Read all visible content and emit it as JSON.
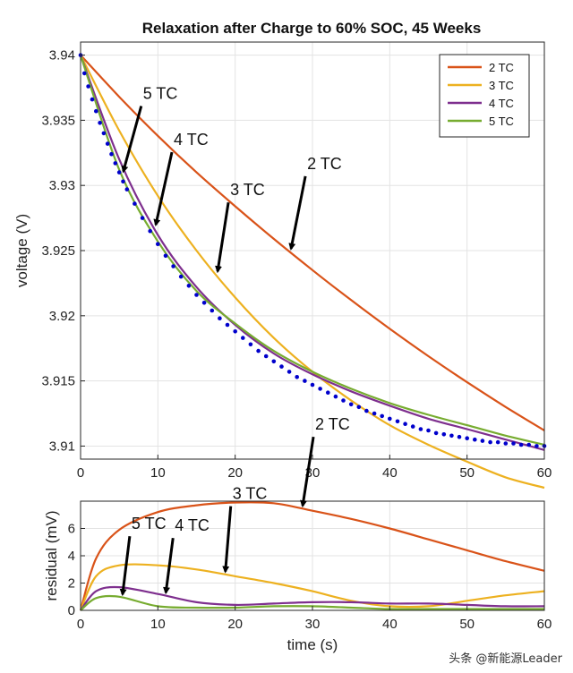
{
  "chart_data": [
    {
      "type": "line",
      "title": "Relaxation after Charge to 60% SOC, 45 Weeks",
      "xlabel": "",
      "ylabel": "voltage (V)",
      "xlim": [
        0,
        60
      ],
      "ylim": [
        3.909,
        3.941
      ],
      "grid": true,
      "legend_position": "top-right",
      "x_ticks": [
        0,
        10,
        20,
        30,
        40,
        50,
        60
      ],
      "x_tick_labels": [
        "0",
        "10",
        "20",
        "30",
        "40",
        "50",
        "60"
      ],
      "y_ticks": [
        3.91,
        3.915,
        3.92,
        3.925,
        3.93,
        3.935,
        3.94
      ],
      "y_tick_labels": [
        "3.91",
        "3.915",
        "3.92",
        "3.925",
        "3.93",
        "3.935",
        "3.94"
      ],
      "x": [
        0,
        5,
        10,
        15,
        20,
        25,
        30,
        35,
        40,
        45,
        50,
        55,
        60
      ],
      "series": [
        {
          "name": "2 TC",
          "color": "#D95319",
          "values": [
            3.94,
            3.9368,
            3.9338,
            3.931,
            3.9284,
            3.9259,
            3.9235,
            3.9212,
            3.919,
            3.9169,
            3.9149,
            3.913,
            3.9112
          ]
        },
        {
          "name": "3 TC",
          "color": "#EDB120",
          "values": [
            3.94,
            3.9342,
            3.9292,
            3.925,
            3.9214,
            3.9183,
            3.9157,
            3.9135,
            3.9116,
            3.9101,
            3.9088,
            3.9076,
            3.9068
          ]
        },
        {
          "name": "4 TC",
          "color": "#7E2F8E",
          "values": [
            3.94,
            3.932,
            3.9262,
            3.9222,
            3.9193,
            3.9171,
            3.9155,
            3.9142,
            3.9131,
            3.9121,
            3.9113,
            3.9105,
            3.9097
          ]
        },
        {
          "name": "5 TC",
          "color": "#77AC30",
          "values": [
            3.94,
            3.9312,
            3.9257,
            3.9219,
            3.9194,
            3.9173,
            3.9157,
            3.9144,
            3.9133,
            3.9124,
            3.9116,
            3.9108,
            3.9101
          ]
        }
      ],
      "measured": {
        "name": "measured",
        "color": "#0000CC",
        "x": [
          0,
          0.5,
          1,
          1.5,
          2,
          2.5,
          3,
          3.5,
          4,
          4.5,
          5,
          5.5,
          6,
          7,
          8,
          9,
          10,
          11,
          12,
          13,
          14,
          15,
          16,
          17,
          18,
          19,
          20,
          21,
          22,
          23,
          24,
          25,
          26,
          27,
          28,
          29,
          30,
          31,
          32,
          33,
          34,
          35,
          36,
          37,
          38,
          39,
          40,
          41,
          42,
          43,
          44,
          45,
          46,
          47,
          48,
          49,
          50,
          51,
          52,
          53,
          54,
          55,
          56,
          57,
          58,
          59,
          60
        ],
        "values": [
          3.94,
          3.9386,
          3.9376,
          3.9366,
          3.9357,
          3.9348,
          3.934,
          3.9332,
          3.9324,
          3.9317,
          3.931,
          3.9303,
          3.9297,
          3.9286,
          3.9275,
          3.9265,
          3.9255,
          3.9246,
          3.9238,
          3.923,
          3.9223,
          3.9216,
          3.921,
          3.9204,
          3.9198,
          3.9193,
          3.9188,
          3.9183,
          3.9178,
          3.9173,
          3.9169,
          3.9165,
          3.9161,
          3.9157,
          3.9153,
          3.915,
          3.9147,
          3.9144,
          3.9141,
          3.9138,
          3.9135,
          3.9132,
          3.913,
          3.9127,
          3.9125,
          3.9123,
          3.9121,
          3.9119,
          3.9117,
          3.9115,
          3.9113,
          3.9112,
          3.911,
          3.9109,
          3.9108,
          3.9107,
          3.9106,
          3.9105,
          3.9104,
          3.9103,
          3.9103,
          3.9102,
          3.9102,
          3.9101,
          3.9101,
          3.91,
          3.91
        ]
      },
      "annotations": [
        {
          "text": "5 TC",
          "series": "5 TC",
          "x": 5.3
        },
        {
          "text": "4 TC",
          "series": "4 TC",
          "x": 9.5
        },
        {
          "text": "3 TC",
          "series": "3 TC",
          "x": 17.5
        },
        {
          "text": "2 TC",
          "series": "2 TC",
          "x": 27
        }
      ]
    },
    {
      "type": "line",
      "title": "",
      "xlabel": "time (s)",
      "ylabel": "residual (mV)",
      "xlim": [
        0,
        60
      ],
      "ylim": [
        0,
        8
      ],
      "grid": true,
      "x_ticks": [
        0,
        10,
        20,
        30,
        40,
        50,
        60
      ],
      "x_tick_labels": [
        "0",
        "10",
        "20",
        "30",
        "40",
        "50",
        "60"
      ],
      "y_ticks": [
        0,
        2,
        4,
        6
      ],
      "y_tick_labels": [
        "0",
        "2",
        "4",
        "6"
      ],
      "x": [
        0,
        2,
        5,
        10,
        15,
        20,
        25,
        30,
        35,
        40,
        45,
        50,
        55,
        60
      ],
      "series": [
        {
          "name": "2 TC",
          "color": "#D95319",
          "values": [
            0,
            3.8,
            5.9,
            7.2,
            7.7,
            7.9,
            7.85,
            7.3,
            6.7,
            6.0,
            5.2,
            4.4,
            3.6,
            2.9
          ]
        },
        {
          "name": "3 TC",
          "color": "#EDB120",
          "values": [
            0,
            2.5,
            3.3,
            3.3,
            3.0,
            2.5,
            2.0,
            1.4,
            0.7,
            0.3,
            0.3,
            0.7,
            1.1,
            1.4
          ]
        },
        {
          "name": "4 TC",
          "color": "#7E2F8E",
          "values": [
            0,
            1.4,
            1.7,
            1.2,
            0.6,
            0.4,
            0.5,
            0.6,
            0.6,
            0.5,
            0.5,
            0.4,
            0.3,
            0.3
          ]
        },
        {
          "name": "5 TC",
          "color": "#77AC30",
          "values": [
            0,
            0.9,
            1.0,
            0.3,
            0.2,
            0.2,
            0.3,
            0.3,
            0.2,
            0.1,
            0.1,
            0.1,
            0.1,
            0.1
          ]
        }
      ],
      "annotations": [
        {
          "text": "5 TC",
          "series": "5 TC",
          "x": 5.2
        },
        {
          "text": "4 TC",
          "series": "4 TC",
          "x": 10.8
        },
        {
          "text": "3 TC",
          "series": "3 TC",
          "x": 18.5
        },
        {
          "text": "2 TC",
          "series": "2 TC",
          "x": 28.5
        }
      ]
    }
  ],
  "watermark": "头条 @新能源Leader"
}
